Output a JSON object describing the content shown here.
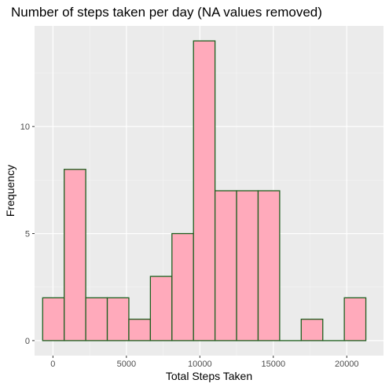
{
  "chart_data": {
    "type": "bar",
    "title": "Number of steps taken per day (NA values removed)",
    "xlabel": "Total Steps Taken",
    "ylabel": "Frequency",
    "xlim": [
      -1250,
      22500
    ],
    "ylim": [
      -0.7,
      14.7
    ],
    "x_ticks": [
      0,
      5000,
      10000,
      15000,
      20000
    ],
    "x_tick_labels": [
      "0",
      "5000",
      "10000",
      "15000",
      "20000"
    ],
    "y_ticks": [
      0,
      5,
      10
    ],
    "y_tick_labels": [
      "0",
      "5",
      "10"
    ],
    "bin_width": 1467,
    "bins": [
      {
        "x0": -700,
        "x1": 767,
        "count": 2
      },
      {
        "x0": 767,
        "x1": 2233,
        "count": 8
      },
      {
        "x0": 2233,
        "x1": 3700,
        "count": 2
      },
      {
        "x0": 3700,
        "x1": 5167,
        "count": 2
      },
      {
        "x0": 5167,
        "x1": 6633,
        "count": 1
      },
      {
        "x0": 6633,
        "x1": 8100,
        "count": 3
      },
      {
        "x0": 8100,
        "x1": 9567,
        "count": 5
      },
      {
        "x0": 9567,
        "x1": 11033,
        "count": 14
      },
      {
        "x0": 11033,
        "x1": 12500,
        "count": 7
      },
      {
        "x0": 12500,
        "x1": 13967,
        "count": 7
      },
      {
        "x0": 13967,
        "x1": 15433,
        "count": 7
      },
      {
        "x0": 15433,
        "x1": 16900,
        "count": 0
      },
      {
        "x0": 16900,
        "x1": 18367,
        "count": 1
      },
      {
        "x0": 18367,
        "x1": 19833,
        "count": 0
      },
      {
        "x0": 19833,
        "x1": 21300,
        "count": 2
      }
    ],
    "colors": {
      "bar_fill": "#ffaabb",
      "bar_stroke": "#1f5f1f",
      "panel_background": "#ebebeb",
      "grid_major": "#ffffff",
      "grid_minor": "#f5f5f5"
    },
    "grid": true,
    "legend": "none"
  }
}
